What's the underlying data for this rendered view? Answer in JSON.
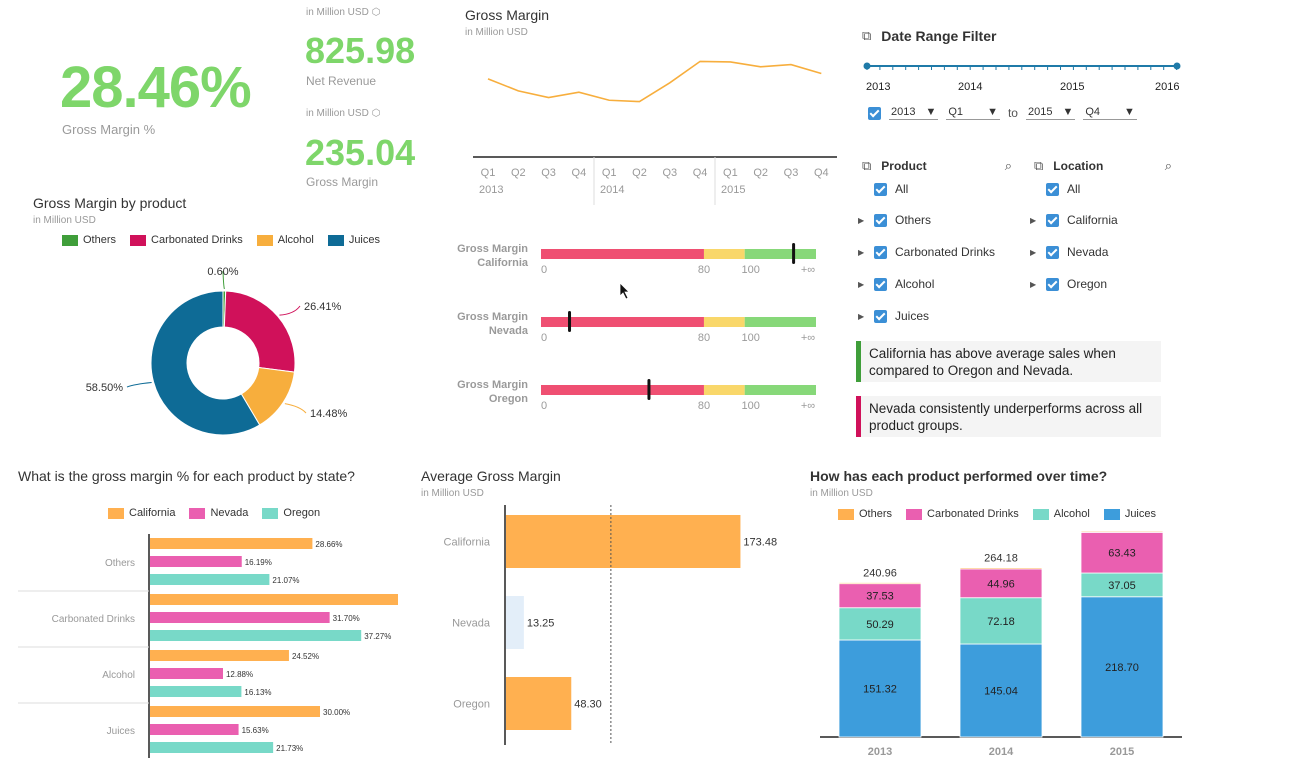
{
  "kpis": {
    "gross_margin_pct": {
      "value": "28.46%",
      "label": "Gross Margin %"
    },
    "net_revenue": {
      "unit": "in Million USD",
      "value": "825.98",
      "label": "Net Revenue"
    },
    "gross_margin": {
      "unit": "in Million USD",
      "value": "235.04",
      "label": "Gross Margin"
    }
  },
  "colors": {
    "others": "#3f9e3a",
    "carbonated": "#d0115a",
    "alcohol": "#f7ae3d",
    "juices": "#0e6b96",
    "california": "#ffb050",
    "nevada": "#ea5fb0",
    "oregon": "#78d9c8",
    "stack_juices": "#3d9ddc",
    "stack_others": "#ffb050",
    "kpi_green": "#7ed66a"
  },
  "chart_data": [
    {
      "id": "gross_margin_line",
      "type": "line",
      "title": "Gross Margin",
      "subtitle": "in Million USD",
      "x": [
        "Q1",
        "Q2",
        "Q3",
        "Q4",
        "Q1",
        "Q2",
        "Q3",
        "Q4",
        "Q1",
        "Q2",
        "Q3",
        "Q4"
      ],
      "years": [
        "2013",
        "2014",
        "2015"
      ],
      "values": [
        48.5,
        44,
        41.5,
        43.5,
        40.5,
        40,
        47,
        55,
        54.8,
        53,
        53.8,
        50.5
      ],
      "ylim": [
        35,
        60
      ]
    },
    {
      "id": "donut",
      "type": "pie",
      "title": "Gross Margin by product",
      "subtitle": "in Million USD",
      "legend": [
        "Others",
        "Carbonated Drinks",
        "Alcohol",
        "Juices"
      ],
      "values": [
        0.6,
        26.41,
        14.48,
        58.5
      ],
      "labels": [
        "0.60%",
        "26.41%",
        "14.48%",
        "58.50%"
      ]
    },
    {
      "id": "bullets",
      "type": "bar",
      "rows": [
        {
          "label1": "Gross Margin",
          "label2": "California",
          "marker": 124
        },
        {
          "label1": "Gross Margin",
          "label2": "Nevada",
          "marker": 14
        },
        {
          "label1": "Gross Margin",
          "label2": "Oregon",
          "marker": 53
        }
      ],
      "ranges": [
        80,
        100
      ],
      "ticks": [
        "0",
        "80",
        "100",
        "+∞"
      ],
      "axis_max": 135
    },
    {
      "id": "state_bars",
      "type": "bar",
      "title": "What is the gross margin % for each product by state?",
      "legend": [
        "California",
        "Nevada",
        "Oregon"
      ],
      "categories": [
        "Others",
        "Carbonated Drinks",
        "Alcohol",
        "Juices"
      ],
      "series": [
        {
          "name": "California",
          "values": [
            28.66,
            46.14,
            24.52,
            30.0
          ],
          "labels": [
            "28.66%",
            "46.14%",
            "24.52%",
            "30.00%"
          ]
        },
        {
          "name": "Nevada",
          "values": [
            16.19,
            31.7,
            12.88,
            15.63
          ],
          "labels": [
            "16.19%",
            "31.70%",
            "12.88%",
            "15.63%"
          ]
        },
        {
          "name": "Oregon",
          "values": [
            21.07,
            37.27,
            16.13,
            21.73
          ],
          "labels": [
            "21.07%",
            "37.27%",
            "16.13%",
            "21.73%"
          ]
        }
      ],
      "xlim": [
        0,
        50
      ]
    },
    {
      "id": "avg_bars",
      "type": "bar",
      "title": "Average Gross Margin",
      "subtitle": "in Million USD",
      "categories": [
        "California",
        "Nevada",
        "Oregon"
      ],
      "values": [
        173.48,
        13.25,
        48.3
      ],
      "labels": [
        "173.48",
        "13.25",
        "48.30"
      ],
      "average": 78.35,
      "xlim": [
        0,
        185
      ]
    },
    {
      "id": "stacked",
      "type": "bar",
      "title": "How has each product performed over time?",
      "subtitle": "in Million USD",
      "legend": [
        "Others",
        "Carbonated Drinks",
        "Alcohol",
        "Juices"
      ],
      "categories": [
        "2013",
        "2014",
        "2015"
      ],
      "series": [
        {
          "name": "Juices",
          "values": [
            151.32,
            145.04,
            218.7
          ],
          "labels": [
            "151.32",
            "145.04",
            "218.70"
          ]
        },
        {
          "name": "Alcohol",
          "values": [
            50.29,
            72.18,
            37.05
          ],
          "labels": [
            "50.29",
            "72.18",
            "37.05"
          ]
        },
        {
          "name": "Carbonated Drinks",
          "values": [
            37.53,
            44.96,
            63.43
          ],
          "labels": [
            "37.53",
            "44.96",
            "63.43"
          ]
        },
        {
          "name": "Others",
          "values": [
            1.82,
            2.0,
            1.66
          ]
        }
      ],
      "totals": [
        "240.96",
        "264.18",
        "320.84"
      ],
      "ylim": [
        0,
        340
      ]
    }
  ],
  "filter": {
    "title": "Date Range Filter",
    "years": [
      "2013",
      "2014",
      "2015",
      "2016"
    ],
    "from_year": "2013",
    "from_q": "Q1",
    "to": "to",
    "to_year": "2015",
    "to_q": "Q4"
  },
  "product": {
    "title": "Product",
    "all": "All",
    "items": [
      "Others",
      "Carbonated Drinks",
      "Alcohol",
      "Juices"
    ]
  },
  "location": {
    "title": "Location",
    "all": "All",
    "items": [
      "California",
      "Nevada",
      "Oregon"
    ]
  },
  "notes": [
    {
      "text": "California has above average sales when compared to Oregon and Nevada.",
      "color": "#3f9e3a"
    },
    {
      "text": "Nevada consistently underperforms across all product groups.",
      "color": "#d0115a"
    }
  ]
}
